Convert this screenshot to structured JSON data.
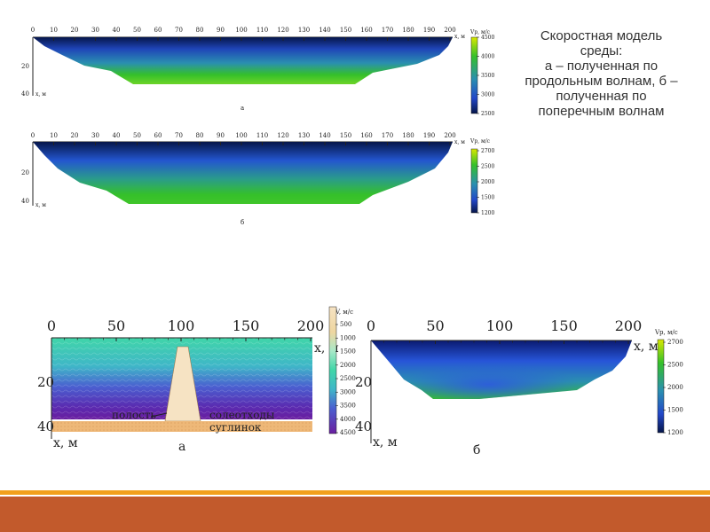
{
  "caption": {
    "line1": "Скоростная модель",
    "line2": "среды:",
    "line3": "а – полученная по",
    "line4": "продольным волнам, б –",
    "line5": "полученная по",
    "line6": "поперечным волнам"
  },
  "colors": {
    "band_gold": "#f2a01c",
    "band_rust": "#c25a2c",
    "green": "#35c02a",
    "blue": "#2a5bd0",
    "navy": "#06164a",
    "cavity": "#f6e3c3",
    "loam": "#eeb878"
  },
  "chart_data": [
    {
      "id": "top_a",
      "type": "heatmap",
      "x_ticks": [
        "0",
        "10",
        "20",
        "30",
        "40",
        "50",
        "60",
        "70",
        "80",
        "90",
        "100",
        "110",
        "120",
        "130",
        "140",
        "150",
        "160",
        "170",
        "180",
        "190",
        "200"
      ],
      "y_ticks": [
        "20",
        "40"
      ],
      "xlabel": "x, м",
      "ylabel": "x, м",
      "ylim": [
        0,
        40
      ],
      "colorbar_title": "Vp, м/с",
      "colorbar_ticks": [
        "4500",
        "4000",
        "3500",
        "3000",
        "2500"
      ],
      "profile_bottom": [
        [
          0,
          0
        ],
        [
          20,
          8
        ],
        [
          35,
          14
        ],
        [
          50,
          18
        ],
        [
          195,
          18
        ],
        [
          203,
          10
        ],
        [
          210,
          0
        ]
      ],
      "panel_label": "а"
    },
    {
      "id": "top_b",
      "type": "heatmap",
      "x_ticks": [
        "0",
        "10",
        "20",
        "30",
        "40",
        "50",
        "60",
        "70",
        "80",
        "90",
        "100",
        "110",
        "120",
        "130",
        "140",
        "150",
        "160",
        "170",
        "180",
        "190",
        "200"
      ],
      "y_ticks": [
        "20",
        "40"
      ],
      "xlabel": "x, м",
      "ylabel": "x, м",
      "ylim": [
        0,
        40
      ],
      "colorbar_title": "Vp, м/с",
      "colorbar_ticks": [
        "2700",
        "2500",
        "2000",
        "1500",
        "1200"
      ],
      "profile_bottom": [
        [
          0,
          0
        ],
        [
          15,
          14
        ],
        [
          35,
          20
        ],
        [
          50,
          22
        ],
        [
          160,
          22
        ],
        [
          190,
          16
        ],
        [
          205,
          0
        ]
      ],
      "panel_label": "б"
    },
    {
      "id": "bottom_a",
      "type": "heatmap",
      "x_ticks": [
        "0",
        "50",
        "100",
        "150",
        "200"
      ],
      "y_ticks": [
        "20",
        "40"
      ],
      "xlabel": "x, м",
      "ylabel": "x, м",
      "ylim": [
        0,
        40
      ],
      "colorbar_title": "V, м/с",
      "colorbar_ticks": [
        "500",
        "1000",
        "1500",
        "2000",
        "2500",
        "3000",
        "3500",
        "4000",
        "4500"
      ],
      "annotations": [
        "полость",
        "солеотходы",
        "суглинок"
      ],
      "panel_label": "а"
    },
    {
      "id": "bottom_b",
      "type": "heatmap",
      "x_ticks": [
        "0",
        "50",
        "100",
        "150",
        "200"
      ],
      "y_ticks": [
        "20",
        "40"
      ],
      "xlabel": "x, м",
      "ylabel": "x, м",
      "ylim": [
        0,
        40
      ],
      "colorbar_title": "Vp, м/с",
      "colorbar_ticks": [
        "2700",
        "2500",
        "2000",
        "1500",
        "1200"
      ],
      "profile_bottom": [
        [
          0,
          0
        ],
        [
          20,
          15
        ],
        [
          45,
          22
        ],
        [
          160,
          22
        ],
        [
          190,
          12
        ],
        [
          205,
          0
        ]
      ],
      "panel_label": "б"
    }
  ]
}
